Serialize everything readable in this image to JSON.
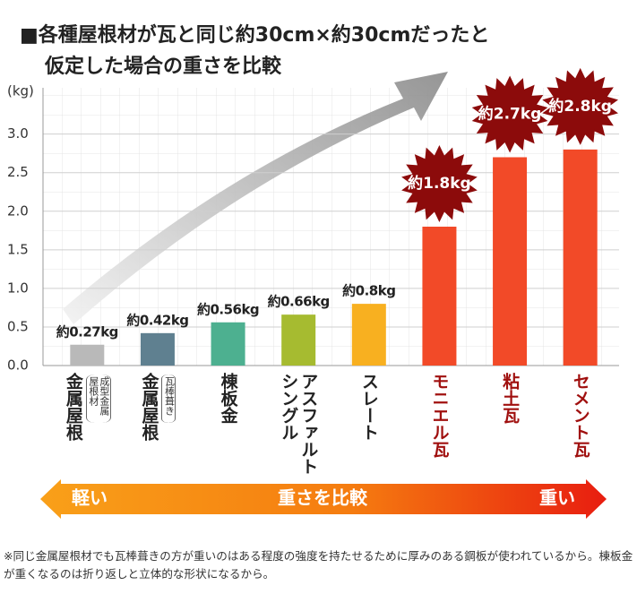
{
  "chart_data": {
    "type": "bar",
    "title": [
      "■各種屋根材が瓦と同じ約30cm×約30cmだったと",
      "仮定した場合の重さを比較"
    ],
    "y_label": "(kg)",
    "categories": [
      "金属屋根",
      "金属屋根",
      "棟板金",
      "アスファルトシングル",
      "スレート",
      "モニエル瓦",
      "粘土瓦",
      "セメント瓦"
    ],
    "category_notes": [
      "成型金属屋根材",
      "瓦棒葺き",
      null,
      null,
      null,
      null,
      null,
      null
    ],
    "category_colors": [
      "#222222",
      "#222222",
      "#222222",
      "#222222",
      "#222222",
      "#a0100f",
      "#a0100f",
      "#a0100f"
    ],
    "values": [
      0.27,
      0.42,
      0.56,
      0.66,
      0.8,
      1.8,
      2.7,
      2.8
    ],
    "value_labels": [
      "約0.27kg",
      "約0.42kg",
      "約0.56kg",
      "約0.66kg",
      "約0.8kg",
      "約1.8kg",
      "約2.7kg",
      "約2.8kg"
    ],
    "value_label_style": [
      "plain",
      "plain",
      "plain",
      "plain",
      "plain",
      "starburst",
      "starburst",
      "starburst"
    ],
    "colors": [
      "#b9b9b9",
      "#5f8090",
      "#4db090",
      "#a6bb30",
      "#f8b020",
      "#f24a28",
      "#f24a28",
      "#f24a28"
    ],
    "ylim": [
      0,
      3.6
    ],
    "yticks": [
      {
        "value": 0,
        "label": "0.0"
      },
      0.5,
      {
        "value": 1,
        "label": "1.0"
      },
      1.5,
      {
        "value": 2,
        "label": "2.0"
      },
      2.5,
      {
        "value": 3,
        "label": "3.0"
      }
    ],
    "grid": true,
    "scale_arrow": {
      "left": "軽い",
      "center": "重さを比較",
      "right": "重い"
    },
    "footnote": "※同じ金属屋根材でも瓦棒葺きの方が重いのはある程度の強度を持たせるために厚みのある鋼板が使われているから。棟板金が重くなるのは折り返しと立体的な形状になるから。"
  }
}
